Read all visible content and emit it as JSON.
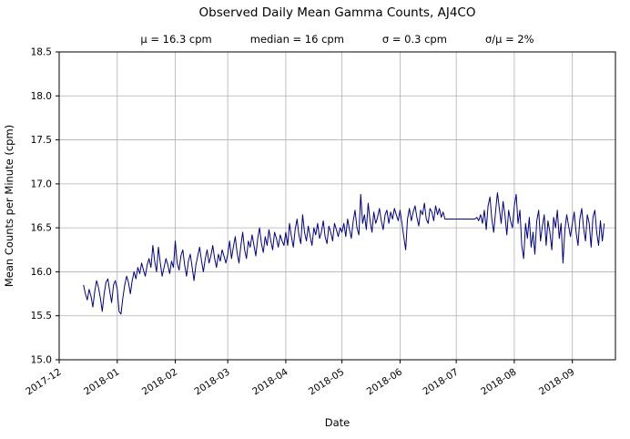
{
  "chart_data": {
    "type": "line",
    "title": "Observed Daily Mean Gamma Counts, AJ4CO",
    "stats": {
      "mu": "μ = 16.3 cpm",
      "median": "median = 16 cpm",
      "sigma": "σ = 0.3 cpm",
      "sigma_over_mu": "σ/μ = 2%"
    },
    "xlabel": "Date",
    "ylabel": "Mean Counts per Minute (cpm)",
    "ylim": [
      15.0,
      18.5
    ],
    "ytick_step": 0.5,
    "grid": true,
    "legend": "none",
    "line_color": "#00008b",
    "grid_color": "#b0b0b0",
    "x_axis": {
      "start": "2017-12-01",
      "end": "2018-09-24",
      "tick_labels": [
        "2017-12",
        "2018-01",
        "2018-02",
        "2018-03",
        "2018-04",
        "2018-05",
        "2018-06",
        "2018-07",
        "2018-08",
        "2018-09"
      ]
    },
    "series": [
      {
        "name": "daily-mean-gamma-counts",
        "start_date": "2017-12-14",
        "cadence_days": 1,
        "values": [
          15.85,
          15.75,
          15.68,
          15.8,
          15.72,
          15.6,
          15.78,
          15.9,
          15.82,
          15.7,
          15.55,
          15.75,
          15.88,
          15.92,
          15.78,
          15.65,
          15.85,
          15.9,
          15.8,
          15.55,
          15.52,
          15.7,
          15.85,
          15.95,
          15.88,
          15.75,
          15.9,
          16.0,
          15.92,
          16.05,
          15.98,
          16.1,
          16.02,
          15.95,
          16.08,
          16.15,
          16.05,
          16.3,
          16.12,
          16.0,
          16.28,
          16.1,
          15.95,
          16.05,
          16.15,
          16.08,
          15.98,
          16.12,
          16.05,
          16.35,
          16.1,
          16.02,
          16.18,
          16.25,
          16.08,
          15.95,
          16.12,
          16.2,
          16.05,
          15.9,
          16.08,
          16.18,
          16.28,
          16.12,
          16.0,
          16.15,
          16.25,
          16.1,
          16.18,
          16.3,
          16.15,
          16.05,
          16.2,
          16.12,
          16.25,
          16.18,
          16.1,
          16.2,
          16.35,
          16.15,
          16.28,
          16.4,
          16.22,
          16.1,
          16.3,
          16.45,
          16.25,
          16.15,
          16.35,
          16.28,
          16.42,
          16.3,
          16.18,
          16.38,
          16.5,
          16.32,
          16.22,
          16.4,
          16.3,
          16.48,
          16.35,
          16.25,
          16.45,
          16.38,
          16.28,
          16.42,
          16.35,
          16.3,
          16.45,
          16.3,
          16.55,
          16.4,
          16.28,
          16.48,
          16.6,
          16.42,
          16.32,
          16.65,
          16.45,
          16.35,
          16.52,
          16.4,
          16.3,
          16.5,
          16.42,
          16.55,
          16.38,
          16.45,
          16.58,
          16.4,
          16.32,
          16.52,
          16.45,
          16.35,
          16.55,
          16.48,
          16.4,
          16.5,
          16.45,
          16.55,
          16.4,
          16.6,
          16.48,
          16.38,
          16.58,
          16.7,
          16.5,
          16.42,
          16.88,
          16.55,
          16.65,
          16.48,
          16.78,
          16.58,
          16.45,
          16.68,
          16.55,
          16.62,
          16.72,
          16.58,
          16.48,
          16.65,
          16.7,
          16.55,
          16.68,
          16.6,
          16.72,
          16.65,
          16.58,
          16.7,
          16.55,
          16.4,
          16.25,
          16.6,
          16.72,
          16.58,
          16.68,
          16.75,
          16.62,
          16.52,
          16.7,
          16.65,
          16.78,
          16.6,
          16.55,
          16.72,
          16.68,
          16.58,
          16.75,
          16.65,
          16.72,
          16.62,
          16.68,
          16.6,
          16.6,
          16.6,
          16.6,
          16.6,
          16.6,
          16.6,
          16.6,
          16.6,
          16.6,
          16.6,
          16.6,
          16.6,
          16.6,
          16.6,
          16.6,
          16.6,
          16.62,
          16.58,
          16.65,
          16.55,
          16.7,
          16.48,
          16.75,
          16.85,
          16.6,
          16.45,
          16.68,
          16.9,
          16.72,
          16.55,
          16.8,
          16.65,
          16.42,
          16.7,
          16.58,
          16.5,
          16.75,
          16.88,
          16.55,
          16.7,
          16.3,
          16.15,
          16.55,
          16.38,
          16.62,
          16.28,
          16.45,
          16.2,
          16.58,
          16.7,
          16.35,
          16.52,
          16.65,
          16.3,
          16.58,
          16.45,
          16.25,
          16.62,
          16.5,
          16.7,
          16.38,
          16.55,
          16.1,
          16.48,
          16.65,
          16.52,
          16.4,
          16.55,
          16.68,
          16.45,
          16.3,
          16.6,
          16.72,
          16.5,
          16.35,
          16.65,
          16.55,
          16.28,
          16.62,
          16.7,
          16.45,
          16.3,
          16.58,
          16.35,
          16.55
        ]
      }
    ]
  }
}
